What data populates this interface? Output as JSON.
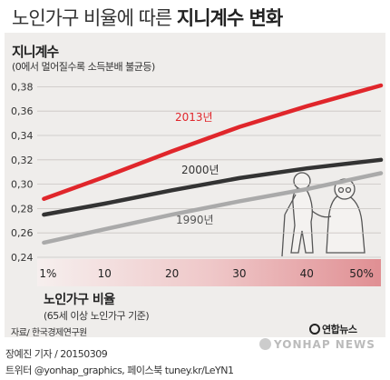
{
  "header": {
    "title_prefix": "노인가구 비율에 따른",
    "title_main": "지니계수 변화"
  },
  "chart_data": {
    "type": "line",
    "ylabel": "지니계수",
    "ylabel_sub": "(0에서 멀어질수록 소득분배 불균등)",
    "xlabel": "노인가구 비율",
    "xlabel_sub": "(65세 이상 노인가구 기준)",
    "x_ticks": [
      "1%",
      "10",
      "20",
      "30",
      "40",
      "50%"
    ],
    "x_tick_values": [
      1,
      10,
      20,
      30,
      40,
      50
    ],
    "xlim": [
      0,
      51
    ],
    "y_ticks": [
      "0,38",
      "0,36",
      "0,34",
      "0,32",
      "0,30",
      "0,28",
      "0,26",
      "0,24"
    ],
    "y_tick_values": [
      0.38,
      0.36,
      0.34,
      0.32,
      0.3,
      0.28,
      0.26,
      0.24
    ],
    "ylim": [
      0.24,
      0.387
    ],
    "grid": true,
    "series": [
      {
        "name": "2013년",
        "color": "#e0262b",
        "x": [
          1,
          10,
          20,
          30,
          40,
          51
        ],
        "values": [
          0.288,
          0.306,
          0.327,
          0.347,
          0.364,
          0.381
        ]
      },
      {
        "name": "2000년",
        "color": "#333333",
        "x": [
          1,
          10,
          20,
          30,
          40,
          51
        ],
        "values": [
          0.275,
          0.284,
          0.295,
          0.305,
          0.313,
          0.32
        ]
      },
      {
        "name": "1990년",
        "color": "#aaaaaa",
        "x": [
          1,
          10,
          20,
          30,
          40,
          51
        ],
        "values": [
          0.252,
          0.263,
          0.275,
          0.286,
          0.296,
          0.309
        ]
      }
    ]
  },
  "footer": {
    "source": "자료/ 한국경제연구원",
    "logo_text": "연합뉴스",
    "credit": "장예진 기자 / 20150309",
    "twitter": "트위터 @yonhap_graphics, 페이스북 tuney.kr/LeYN1",
    "watermark": "YONHAP NEWS"
  }
}
